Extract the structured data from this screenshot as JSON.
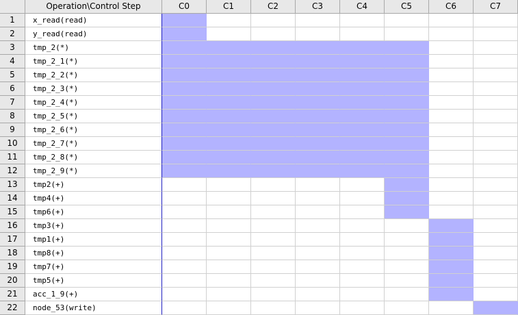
{
  "header": {
    "corner": "",
    "operation_column": "Operation\\Control Step",
    "steps": [
      "C0",
      "C1",
      "C2",
      "C3",
      "C4",
      "C5",
      "C6",
      "C7"
    ]
  },
  "rows": [
    {
      "num": "1",
      "op": "x_read(read)",
      "active": [
        0
      ]
    },
    {
      "num": "2",
      "op": "y_read(read)",
      "active": [
        0
      ]
    },
    {
      "num": "3",
      "op": "tmp_2(*)",
      "active": [
        0,
        1,
        2,
        3,
        4,
        5
      ]
    },
    {
      "num": "4",
      "op": "tmp_2_1(*)",
      "active": [
        0,
        1,
        2,
        3,
        4,
        5
      ]
    },
    {
      "num": "5",
      "op": "tmp_2_2(*)",
      "active": [
        0,
        1,
        2,
        3,
        4,
        5
      ]
    },
    {
      "num": "6",
      "op": "tmp_2_3(*)",
      "active": [
        0,
        1,
        2,
        3,
        4,
        5
      ]
    },
    {
      "num": "7",
      "op": "tmp_2_4(*)",
      "active": [
        0,
        1,
        2,
        3,
        4,
        5
      ]
    },
    {
      "num": "8",
      "op": "tmp_2_5(*)",
      "active": [
        0,
        1,
        2,
        3,
        4,
        5
      ]
    },
    {
      "num": "9",
      "op": "tmp_2_6(*)",
      "active": [
        0,
        1,
        2,
        3,
        4,
        5
      ]
    },
    {
      "num": "10",
      "op": "tmp_2_7(*)",
      "active": [
        0,
        1,
        2,
        3,
        4,
        5
      ]
    },
    {
      "num": "11",
      "op": "tmp_2_8(*)",
      "active": [
        0,
        1,
        2,
        3,
        4,
        5
      ]
    },
    {
      "num": "12",
      "op": "tmp_2_9(*)",
      "active": [
        0,
        1,
        2,
        3,
        4,
        5
      ]
    },
    {
      "num": "13",
      "op": "tmp2(+)",
      "active": [
        5
      ]
    },
    {
      "num": "14",
      "op": "tmp4(+)",
      "active": [
        5
      ]
    },
    {
      "num": "15",
      "op": "tmp6(+)",
      "active": [
        5
      ]
    },
    {
      "num": "16",
      "op": "tmp3(+)",
      "active": [
        6
      ]
    },
    {
      "num": "17",
      "op": "tmp1(+)",
      "active": [
        6
      ]
    },
    {
      "num": "18",
      "op": "tmp8(+)",
      "active": [
        6
      ]
    },
    {
      "num": "19",
      "op": "tmp7(+)",
      "active": [
        6
      ]
    },
    {
      "num": "20",
      "op": "tmp5(+)",
      "active": [
        6
      ]
    },
    {
      "num": "21",
      "op": "acc_1_9(+)",
      "active": [
        6
      ]
    },
    {
      "num": "22",
      "op": "node_53(write)",
      "active": [
        7
      ]
    }
  ],
  "colors": {
    "active_fill": "#b3b3ff",
    "header_bg": "#e8e8e8",
    "grid_line": "#d0d0d0",
    "op_divider": "#1f1fc0"
  }
}
